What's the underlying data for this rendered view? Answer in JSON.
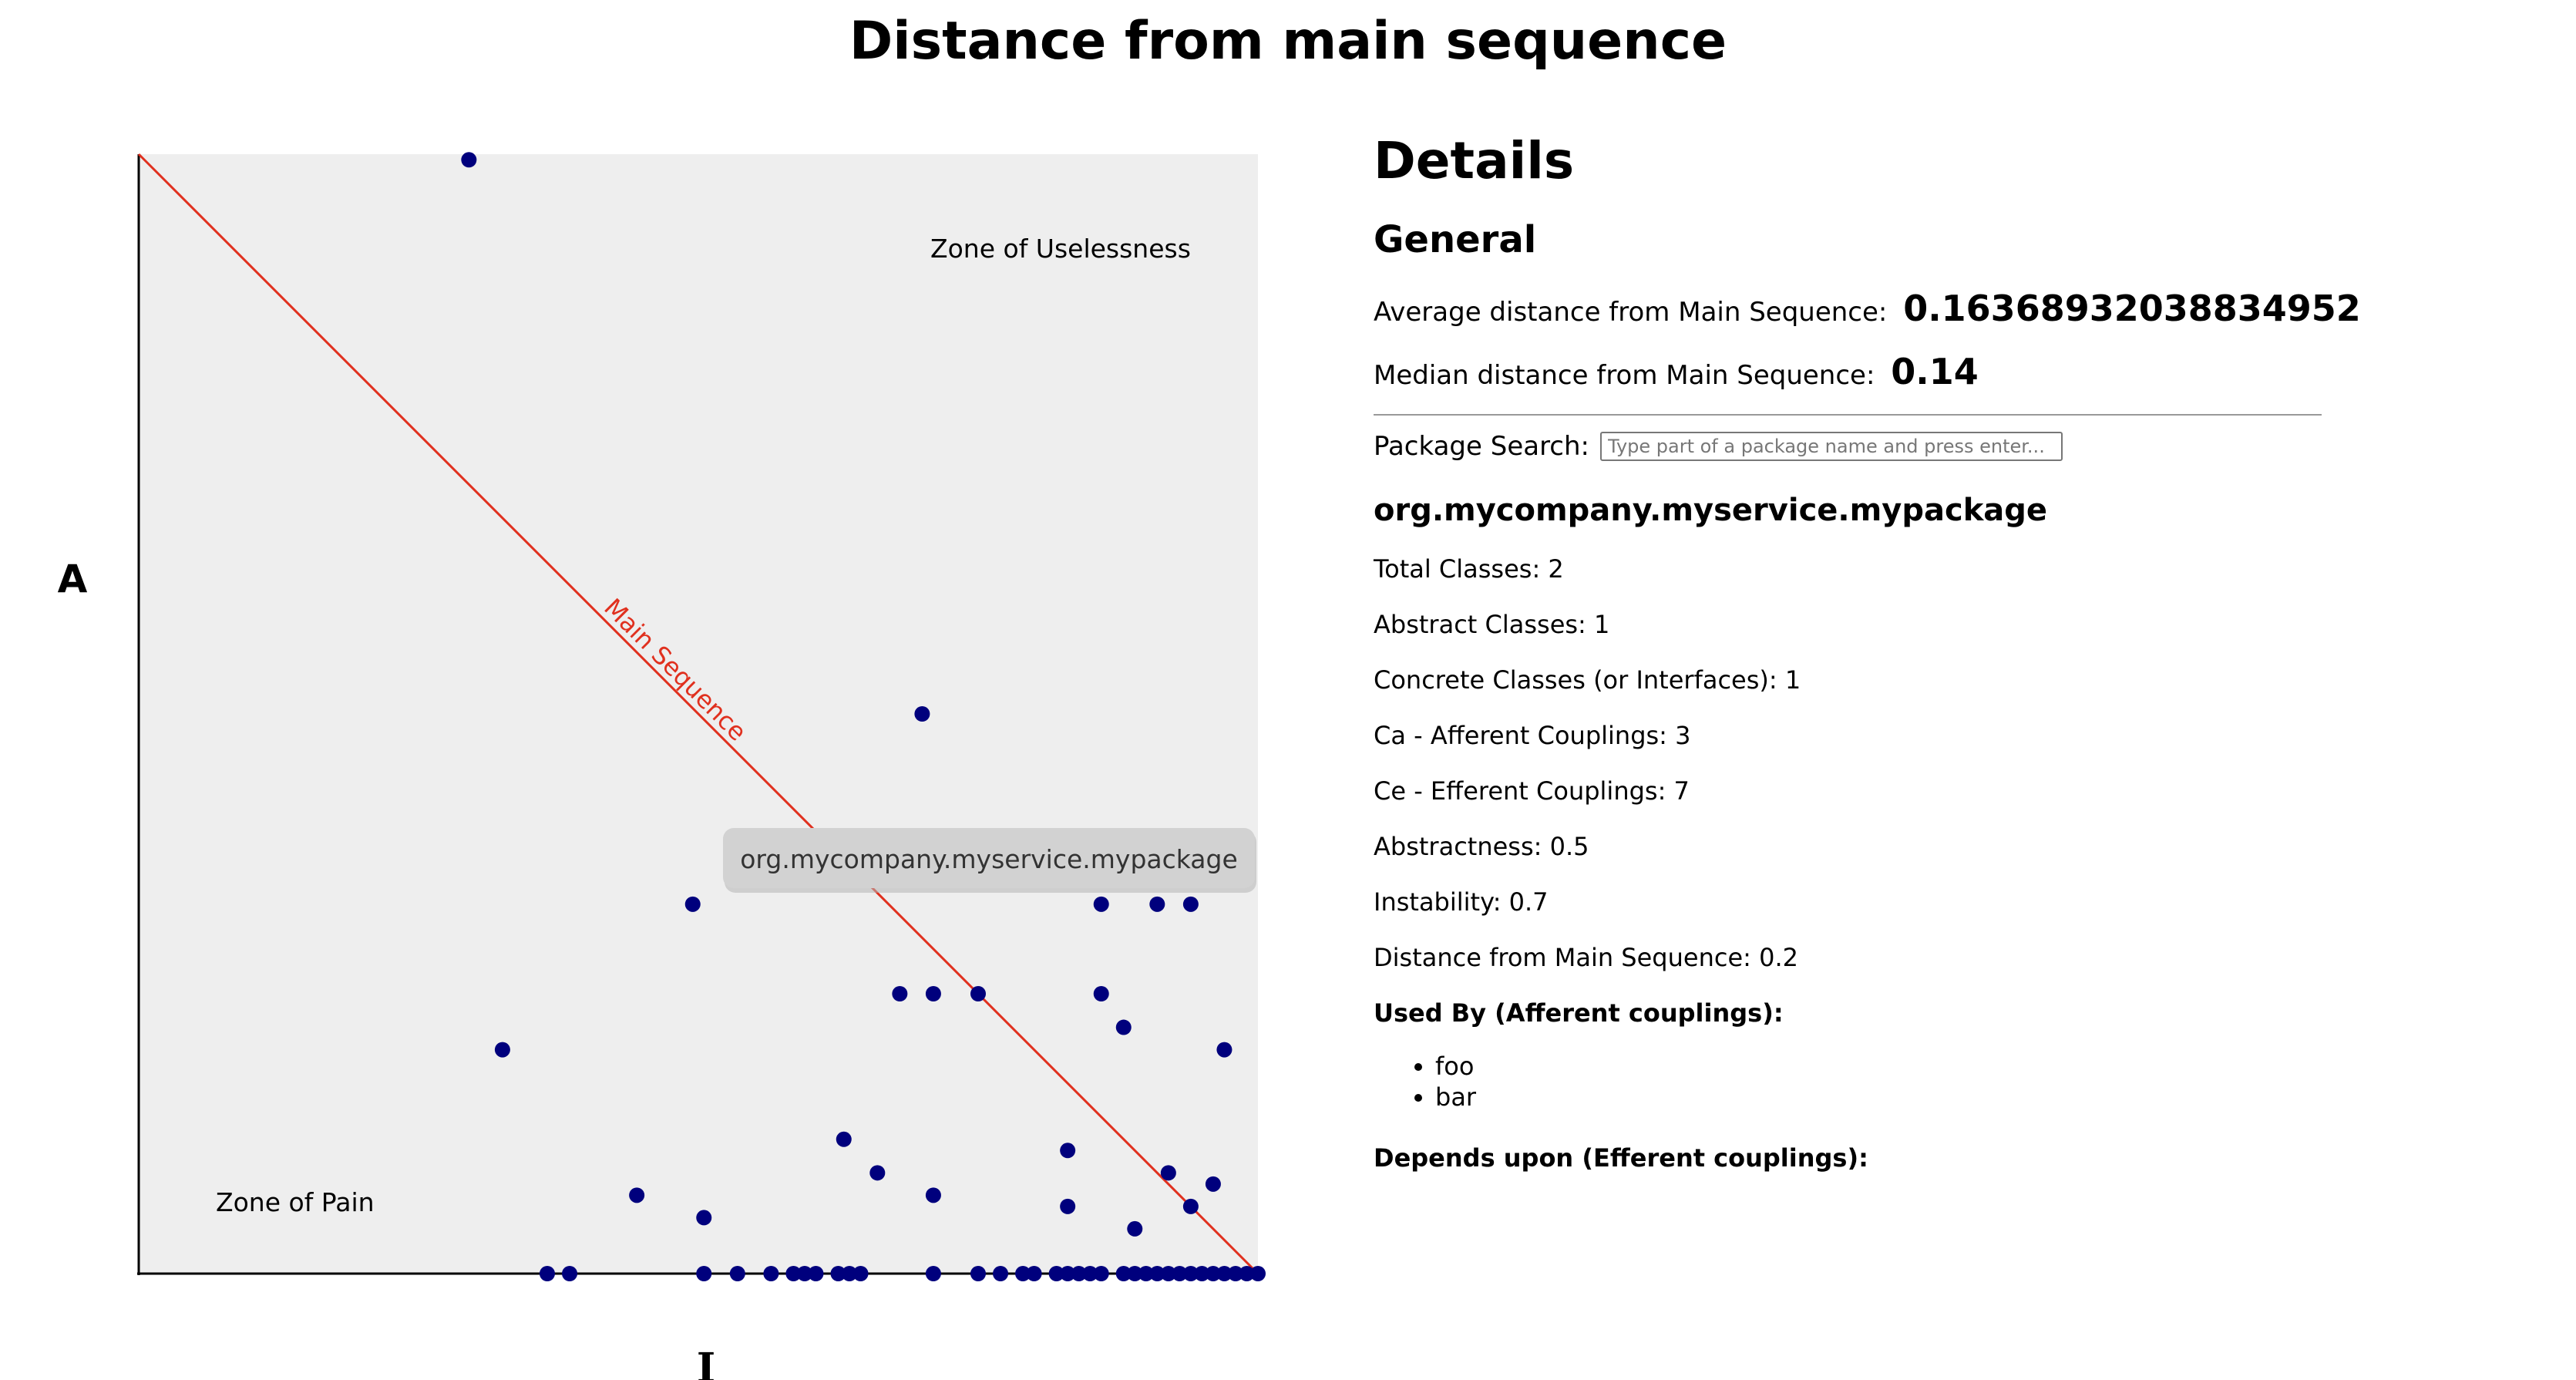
{
  "title": "Distance from main sequence",
  "chart_data": {
    "type": "scatter",
    "title": "Distance from main sequence",
    "xlabel": "I",
    "ylabel": "A",
    "xlim": [
      0,
      1
    ],
    "ylim": [
      0,
      1
    ],
    "grid": false,
    "legend": "none",
    "main_sequence_label": "Main Sequence",
    "zone_uselessness_label": "Zone of Uselessness",
    "zone_pain_label": "Zone of Pain",
    "tooltip": "org.mycompany.myservice.mypackage",
    "point_color": "#00007d",
    "main_sequence_color": "#e0301e",
    "plot_background": "#eeeeee",
    "points": [
      {
        "x": 0.295,
        "y": 0.995
      },
      {
        "x": 0.7,
        "y": 0.5
      },
      {
        "x": 0.495,
        "y": 0.33
      },
      {
        "x": 0.86,
        "y": 0.33
      },
      {
        "x": 0.91,
        "y": 0.33
      },
      {
        "x": 0.94,
        "y": 0.33
      },
      {
        "x": 0.68,
        "y": 0.25
      },
      {
        "x": 0.71,
        "y": 0.25
      },
      {
        "x": 0.75,
        "y": 0.25
      },
      {
        "x": 0.86,
        "y": 0.25
      },
      {
        "x": 0.88,
        "y": 0.22
      },
      {
        "x": 0.325,
        "y": 0.2
      },
      {
        "x": 0.97,
        "y": 0.2
      },
      {
        "x": 0.63,
        "y": 0.12
      },
      {
        "x": 0.83,
        "y": 0.11
      },
      {
        "x": 0.66,
        "y": 0.09
      },
      {
        "x": 0.92,
        "y": 0.09
      },
      {
        "x": 0.96,
        "y": 0.08
      },
      {
        "x": 0.445,
        "y": 0.07
      },
      {
        "x": 0.71,
        "y": 0.07
      },
      {
        "x": 0.83,
        "y": 0.06
      },
      {
        "x": 0.94,
        "y": 0.06
      },
      {
        "x": 0.505,
        "y": 0.05
      },
      {
        "x": 0.89,
        "y": 0.04
      },
      {
        "x": 0.365,
        "y": 0.0
      },
      {
        "x": 0.385,
        "y": 0.0
      },
      {
        "x": 0.505,
        "y": 0.0
      },
      {
        "x": 0.535,
        "y": 0.0
      },
      {
        "x": 0.565,
        "y": 0.0
      },
      {
        "x": 0.585,
        "y": 0.0
      },
      {
        "x": 0.595,
        "y": 0.0
      },
      {
        "x": 0.605,
        "y": 0.0
      },
      {
        "x": 0.625,
        "y": 0.0
      },
      {
        "x": 0.635,
        "y": 0.0
      },
      {
        "x": 0.645,
        "y": 0.0
      },
      {
        "x": 0.71,
        "y": 0.0
      },
      {
        "x": 0.75,
        "y": 0.0
      },
      {
        "x": 0.77,
        "y": 0.0
      },
      {
        "x": 0.79,
        "y": 0.0
      },
      {
        "x": 0.8,
        "y": 0.0
      },
      {
        "x": 0.82,
        "y": 0.0
      },
      {
        "x": 0.83,
        "y": 0.0
      },
      {
        "x": 0.84,
        "y": 0.0
      },
      {
        "x": 0.85,
        "y": 0.0
      },
      {
        "x": 0.86,
        "y": 0.0
      },
      {
        "x": 0.88,
        "y": 0.0
      },
      {
        "x": 0.89,
        "y": 0.0
      },
      {
        "x": 0.9,
        "y": 0.0
      },
      {
        "x": 0.91,
        "y": 0.0
      },
      {
        "x": 0.92,
        "y": 0.0
      },
      {
        "x": 0.93,
        "y": 0.0
      },
      {
        "x": 0.94,
        "y": 0.0
      },
      {
        "x": 0.95,
        "y": 0.0
      },
      {
        "x": 0.96,
        "y": 0.0
      },
      {
        "x": 0.97,
        "y": 0.0
      },
      {
        "x": 0.98,
        "y": 0.0
      },
      {
        "x": 0.99,
        "y": 0.0
      },
      {
        "x": 1.0,
        "y": 0.0
      }
    ]
  },
  "details": {
    "heading": "Details",
    "general_heading": "General",
    "avg_label": "Average distance from Main Sequence:",
    "avg_value": "0.16368932038834952",
    "median_label": "Median distance from Main Sequence:",
    "median_value": "0.14",
    "search_label": "Package Search:",
    "search_placeholder": "Type part of a package name and press enter...",
    "search_value": "",
    "package": {
      "name": "org.mycompany.myservice.mypackage",
      "total_classes": "Total Classes: 2",
      "abstract_classes": "Abstract Classes: 1",
      "concrete_classes": "Concrete Classes (or Interfaces): 1",
      "ca": "Ca - Afferent Couplings: 3",
      "ce": "Ce - Efferent Couplings: 7",
      "abstractness": "Abstractness: 0.5",
      "instability": "Instability: 0.7",
      "distance": "Distance from Main Sequence: 0.2",
      "used_by_heading": "Used By (Afferent couplings):",
      "used_by": [
        "foo",
        "bar"
      ],
      "depends_upon_heading": "Depends upon (Efferent couplings):"
    }
  }
}
